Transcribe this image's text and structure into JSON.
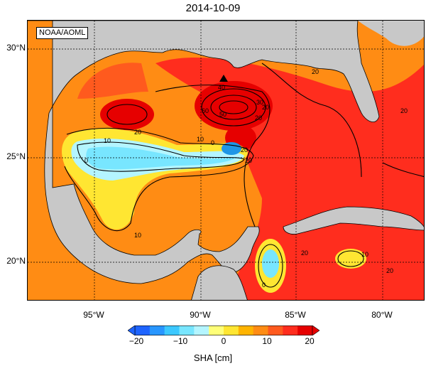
{
  "title": "2014-10-09",
  "credit": "NOAA/AOML",
  "lat_labels": [
    "30°N",
    "25°N",
    "20°N"
  ],
  "lon_labels": [
    "95°W",
    "90°W",
    "85°W",
    "80°W"
  ],
  "colorbar": {
    "title": "SHA [cm]",
    "ticks": [
      "−20",
      "−10",
      "0",
      "10",
      "20"
    ],
    "colors": [
      "#1e64ff",
      "#2896ff",
      "#3cc8ff",
      "#78e6ff",
      "#b4f5ff",
      "#ffff78",
      "#ffe632",
      "#ffb400",
      "#ff8c14",
      "#ff5a1e",
      "#ff2d1e",
      "#e60000"
    ]
  },
  "contour_labels": [
    "40",
    "50",
    "60",
    "30",
    "20",
    "10",
    "0",
    "10",
    "20",
    "20",
    "20",
    "10",
    "0",
    "0",
    "10",
    "20",
    "20",
    "20",
    "20",
    "20",
    "10",
    "20",
    "20",
    "20",
    "20"
  ],
  "colors": {
    "land": "#c8c8c8",
    "ocean_high": "#ff2d1e",
    "ocean_mid": "#ff8c14",
    "ocean_low": "#ffe632",
    "cyan": "#78e6ff",
    "deep_cyan": "#1e96e6"
  }
}
